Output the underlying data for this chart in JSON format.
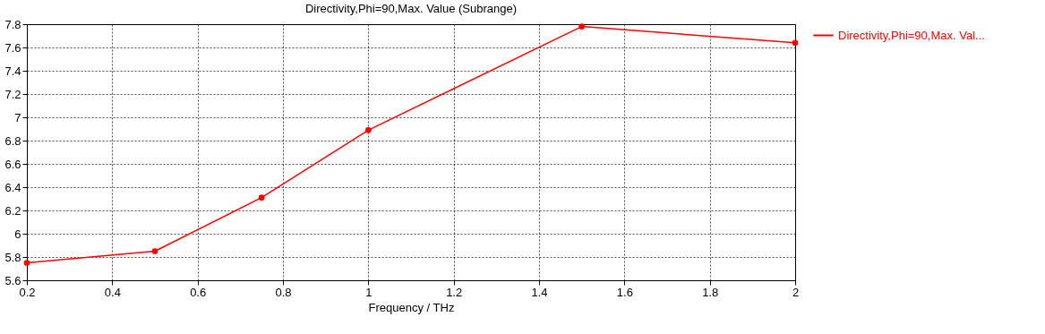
{
  "chart_data": {
    "type": "line",
    "title": "Directivity,Phi=90,Max. Value (Subrange)",
    "xlabel": "Frequency / THz",
    "x": [
      0.2,
      0.5,
      0.75,
      1,
      1.5,
      2
    ],
    "series": [
      {
        "name": "Directivity,Phi=90,Max. Val...",
        "color": "#ff0000",
        "values": [
          5.75,
          5.85,
          6.31,
          6.89,
          7.78,
          7.64
        ]
      }
    ],
    "xlim": [
      0.2,
      2
    ],
    "xticks": [
      0.2,
      0.4,
      0.6,
      0.8,
      1,
      1.2,
      1.4,
      1.6,
      1.8,
      2
    ],
    "ylim": [
      5.6,
      7.8
    ],
    "yticks": [
      5.6,
      5.8,
      6,
      6.2,
      6.4,
      6.6,
      6.8,
      7,
      7.2,
      7.4,
      7.6,
      7.8
    ],
    "grid": true,
    "legend": "top right",
    "marker": "circle",
    "line_style": "solid"
  }
}
